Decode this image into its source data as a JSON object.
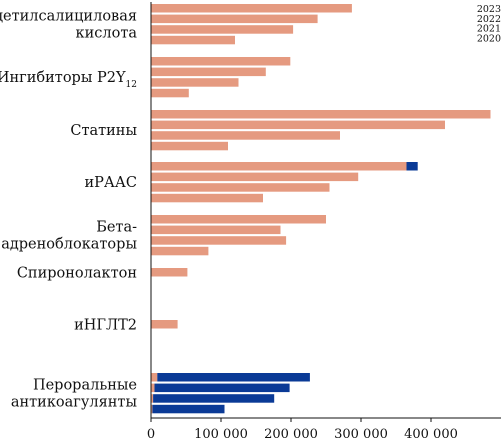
{
  "chart_data": {
    "type": "bar",
    "orientation": "horizontal",
    "stacked": true,
    "title": "",
    "xlabel": "",
    "ylabel": "",
    "xlim": [
      0,
      500000
    ],
    "x_ticks": [
      0,
      100000,
      200000,
      300000,
      400000
    ],
    "x_tick_labels": [
      "0",
      "100 000",
      "200 000",
      "300 000",
      "400 000"
    ],
    "legend": {
      "placement": "top-right",
      "years": [
        "2023",
        "2022",
        "2021",
        "2020"
      ]
    },
    "colors": {
      "light": "#e59a80",
      "dark": "#0a3a96"
    },
    "categories": [
      {
        "lines": [
          "Ацетилсалициловая",
          "кислота"
        ],
        "bars": [
          {
            "year": "2023",
            "light": 287000,
            "dark": 0
          },
          {
            "year": "2022",
            "light": 238000,
            "dark": 0
          },
          {
            "year": "2021",
            "light": 203000,
            "dark": 0
          },
          {
            "year": "2020",
            "light": 120000,
            "dark": 0
          }
        ]
      },
      {
        "lines": [
          "Ингибиторы P2Y"
        ],
        "subscript": "12",
        "bars": [
          {
            "year": "2023",
            "light": 199000,
            "dark": 0
          },
          {
            "year": "2022",
            "light": 164000,
            "dark": 0
          },
          {
            "year": "2021",
            "light": 125000,
            "dark": 0
          },
          {
            "year": "2020",
            "light": 54000,
            "dark": 0
          }
        ]
      },
      {
        "lines": [
          "Статины"
        ],
        "bars": [
          {
            "year": "2023",
            "light": 485000,
            "dark": 0
          },
          {
            "year": "2022",
            "light": 420000,
            "dark": 0
          },
          {
            "year": "2021",
            "light": 270000,
            "dark": 0
          },
          {
            "year": "2020",
            "light": 110000,
            "dark": 0
          }
        ]
      },
      {
        "lines": [
          "иРААС"
        ],
        "bars": [
          {
            "year": "2023",
            "light": 365000,
            "dark": 16000
          },
          {
            "year": "2022",
            "light": 296000,
            "dark": 0
          },
          {
            "year": "2021",
            "light": 255000,
            "dark": 0
          },
          {
            "year": "2020",
            "light": 160000,
            "dark": 0
          }
        ]
      },
      {
        "lines": [
          "Бета-",
          "адреноблокаторы"
        ],
        "bars": [
          {
            "year": "2023",
            "light": 250000,
            "dark": 0
          },
          {
            "year": "2022",
            "light": 185000,
            "dark": 0
          },
          {
            "year": "2021",
            "light": 193000,
            "dark": 0
          },
          {
            "year": "2020",
            "light": 82000,
            "dark": 0
          }
        ]
      },
      {
        "lines": [
          "Спиронолактон"
        ],
        "bars": [
          {
            "year": "2023",
            "light": 52000,
            "dark": 0
          }
        ]
      },
      {
        "lines": [
          "иНГЛТ2"
        ],
        "bars": [
          {
            "year": "2023",
            "light": 38000,
            "dark": 0
          }
        ]
      },
      {
        "lines": [
          "Пероральные",
          "антикоагулянты"
        ],
        "bars": [
          {
            "year": "2023",
            "light": 9000,
            "dark": 218000
          },
          {
            "year": "2022",
            "light": 5000,
            "dark": 193000
          },
          {
            "year": "2021",
            "light": 3000,
            "dark": 173000
          },
          {
            "year": "2020",
            "light": 2000,
            "dark": 103000
          }
        ]
      }
    ]
  }
}
